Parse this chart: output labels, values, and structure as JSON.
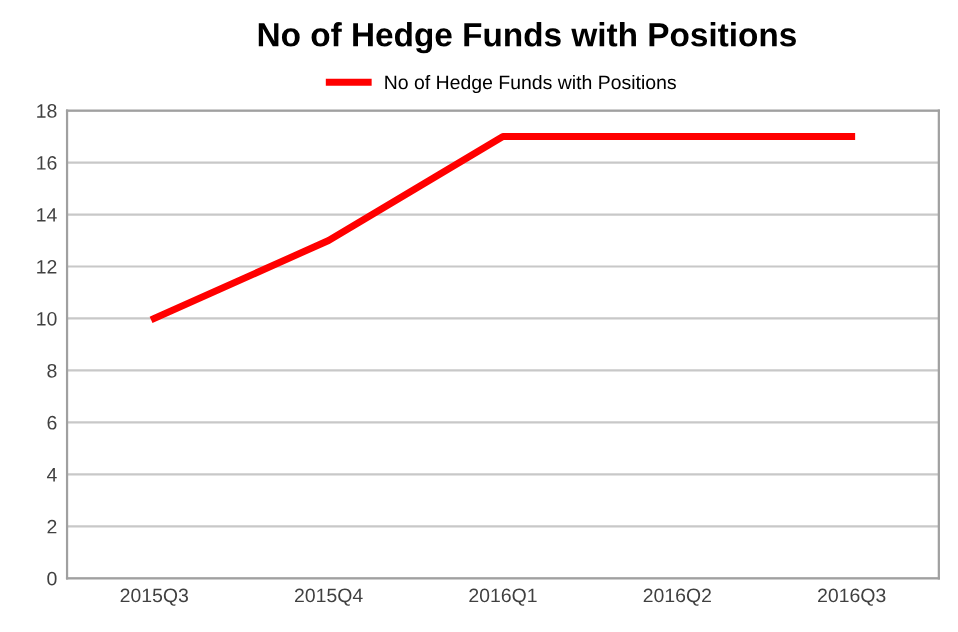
{
  "chart_data": {
    "type": "line",
    "title": "No of Hedge Funds with Positions",
    "categories": [
      "2015Q3",
      "2015Q4",
      "2016Q1",
      "2016Q2",
      "2016Q3"
    ],
    "series": [
      {
        "name": "No of Hedge Funds with Positions",
        "color": "#ff0000",
        "values": [
          10,
          13,
          17,
          17,
          17
        ]
      }
    ],
    "ylim": [
      0,
      18
    ],
    "yticks": [
      0,
      2,
      4,
      6,
      8,
      10,
      12,
      14,
      16,
      18
    ],
    "grid": "y",
    "legend": "top",
    "marker": "none",
    "line_style": "solid"
  }
}
